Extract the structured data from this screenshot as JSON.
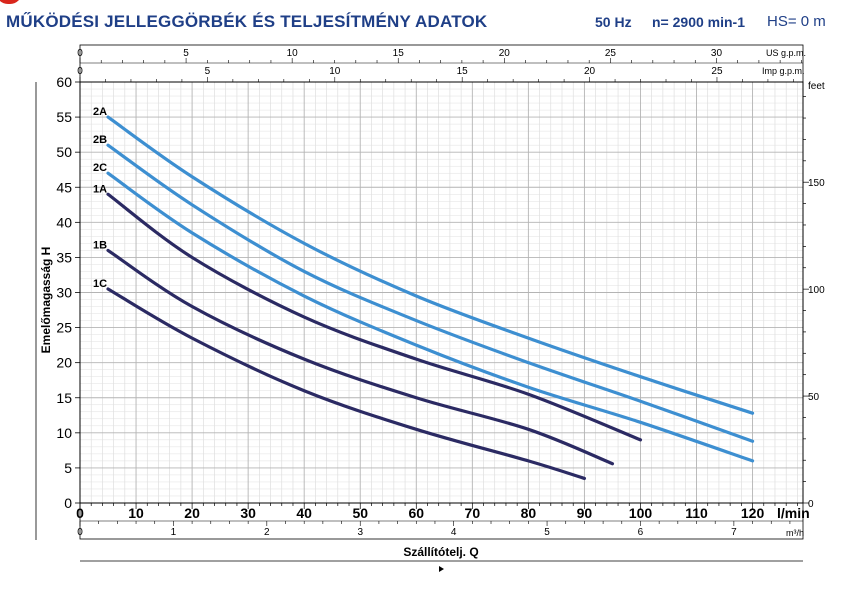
{
  "header": {
    "title": "MŰKÖDÉSI JELLEGGÖRBÉK ÉS TELJESÍTMÉNY ADATOK",
    "frequency": "50 Hz",
    "speed": "n= 2900 min-1",
    "hs": "HS= 0 m"
  },
  "colors": {
    "title": "#1f3f87",
    "series_1": "#2b2a63",
    "series_2": "#3d8fd1",
    "grid": "#c8c8c8",
    "axis": "#000000"
  },
  "chart_data": {
    "type": "line",
    "xlabel": "Szállítótelj. Q",
    "xunit": "l/min",
    "ylabel": "Emelőmagasság H",
    "xlim": [
      0,
      120
    ],
    "ylim": [
      0,
      60
    ],
    "x_ticks": [
      0,
      10,
      20,
      30,
      40,
      50,
      60,
      70,
      80,
      90,
      100,
      110,
      120
    ],
    "y_ticks": [
      0,
      5,
      10,
      15,
      20,
      25,
      30,
      35,
      40,
      45,
      50,
      55,
      60
    ],
    "grid": true,
    "secondary_axes": {
      "us_gpm": {
        "label": "US g.p.m.",
        "ticks": [
          0,
          5,
          10,
          15,
          20,
          25,
          30
        ]
      },
      "imp_gpm": {
        "label": "Imp g.p.m.",
        "ticks": [
          0,
          5,
          10,
          15,
          20,
          25
        ]
      },
      "m3h": {
        "label": "m³/h",
        "ticks": [
          0,
          1,
          2,
          3,
          4,
          5,
          6,
          7
        ]
      },
      "feet": {
        "label": "feet",
        "ticks": [
          0,
          50,
          100,
          150
        ]
      }
    },
    "series": [
      {
        "name": "2A",
        "color": "#3d8fd1",
        "x": [
          5,
          20,
          40,
          60,
          80,
          100,
          120
        ],
        "y": [
          55,
          46.5,
          37,
          29.5,
          23.5,
          18,
          12.8
        ]
      },
      {
        "name": "2B",
        "color": "#3d8fd1",
        "x": [
          5,
          20,
          40,
          60,
          80,
          100,
          120
        ],
        "y": [
          51,
          42.5,
          33,
          26,
          20,
          14.5,
          8.8
        ]
      },
      {
        "name": "2C",
        "color": "#3d8fd1",
        "x": [
          5,
          20,
          40,
          60,
          80,
          100,
          120
        ],
        "y": [
          47,
          38.5,
          29.5,
          22.5,
          16.5,
          11.5,
          6
        ]
      },
      {
        "name": "1A",
        "color": "#2b2a63",
        "x": [
          5,
          20,
          40,
          60,
          80,
          100
        ],
        "y": [
          44,
          35,
          26.5,
          20.5,
          15.5,
          9
        ]
      },
      {
        "name": "1B",
        "color": "#2b2a63",
        "x": [
          5,
          20,
          40,
          60,
          80,
          95
        ],
        "y": [
          36,
          28,
          20.5,
          15,
          10.5,
          5.6
        ]
      },
      {
        "name": "1C",
        "color": "#2b2a63",
        "x": [
          5,
          20,
          40,
          60,
          80,
          90
        ],
        "y": [
          30.5,
          23.5,
          16,
          10.5,
          6,
          3.5
        ]
      }
    ]
  }
}
